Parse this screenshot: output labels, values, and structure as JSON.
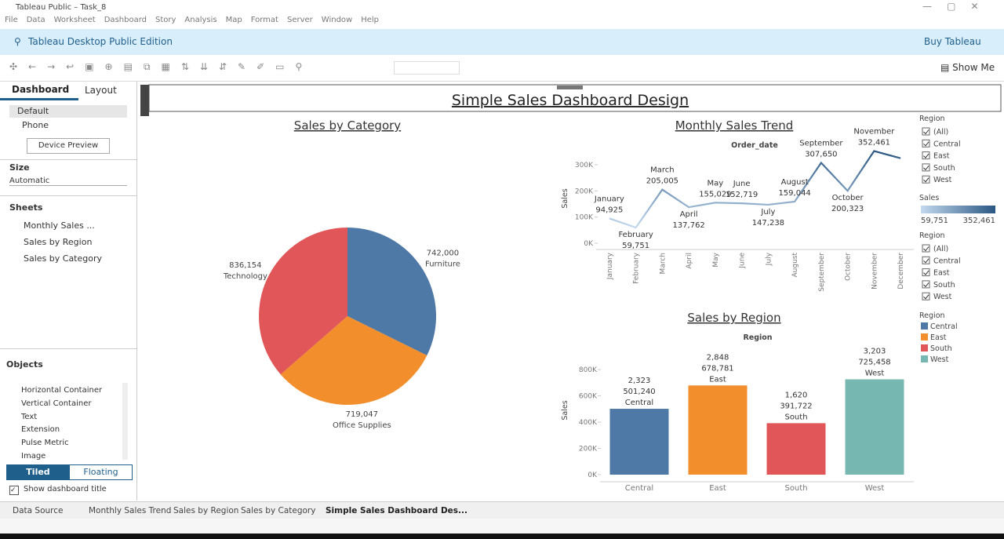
{
  "window": {
    "title": "Tableau Public – Task_8",
    "menu": [
      "File",
      "Data",
      "Worksheet",
      "Dashboard",
      "Story",
      "Analysis",
      "Map",
      "Format",
      "Server",
      "Window",
      "Help"
    ]
  },
  "banner": {
    "edition": "Tableau Desktop Public Edition",
    "buy": "Buy Tableau"
  },
  "toolbar": {
    "show_me": "Show Me"
  },
  "side_panel": {
    "tabs": [
      "Dashboard",
      "Layout"
    ],
    "devices": [
      "Default",
      "Phone"
    ],
    "device_preview": "Device Preview",
    "size_heading": "Size",
    "size_value": "Automatic",
    "sheets_heading": "Sheets",
    "sheets": [
      "Monthly Sales ...",
      "Sales by Region",
      "Sales by Category"
    ],
    "objects_heading": "Objects",
    "objects": [
      "Horizontal Container",
      "Vertical Container",
      "Text",
      "Extension",
      "Pulse Metric",
      "Image"
    ],
    "layout_modes": [
      "Tiled",
      "Floating"
    ],
    "show_title": "Show dashboard title"
  },
  "bottom_tabs": [
    "Data Source",
    "Monthly Sales Trend",
    "Sales by Region",
    "Sales by Category",
    "Simple Sales Dashboard Des..."
  ],
  "dashboard_title": "Simple Sales Dashboard Design",
  "filters": [
    {
      "title": "Region",
      "options": [
        "(All)",
        "Central",
        "East",
        "South",
        "West"
      ]
    },
    {
      "title": "Region",
      "options": [
        "(All)",
        "Central",
        "East",
        "South",
        "West"
      ]
    }
  ],
  "chart_data": [
    {
      "type": "pie",
      "title": "Sales by Category",
      "categories": [
        "Furniture",
        "Office Supplies",
        "Technology"
      ],
      "values": [
        742000,
        719047,
        836154
      ],
      "value_labels": [
        "742,000",
        "719,047",
        "836,154"
      ],
      "colors": [
        "#4e79a7",
        "#f28e2b",
        "#e15759"
      ]
    },
    {
      "type": "line",
      "title": "Monthly Sales Trend",
      "x_header": "Order_date",
      "y_label": "Sales",
      "categories": [
        "January",
        "February",
        "March",
        "April",
        "May",
        "June",
        "July",
        "August",
        "September",
        "October",
        "November",
        "December"
      ],
      "values": [
        94925,
        59751,
        205005,
        137762,
        155029,
        152719,
        147238,
        159044,
        307650,
        200323,
        352461,
        325000
      ],
      "value_labels": [
        "94,925",
        "59,751",
        "205,005",
        "137,762",
        "155,029",
        "152,719",
        "147,238",
        "159,044",
        "307,650",
        "200,323",
        "352,461",
        null
      ],
      "ylim": [
        0,
        360000
      ],
      "yticks": [
        {
          "value": 0,
          "label": "0K"
        },
        {
          "value": 100000,
          "label": "100K"
        },
        {
          "value": 200000,
          "label": "200K"
        },
        {
          "value": 300000,
          "label": "300K"
        }
      ],
      "color_legend": {
        "title": "Sales",
        "colors": [
          "#c3d9ee",
          "#2a5783"
        ],
        "min": {
          "value": 59751,
          "label": "59,751"
        },
        "max": {
          "value": 352461,
          "label": "352,461"
        }
      }
    },
    {
      "type": "bar",
      "title": "Sales by Region",
      "x_header": "Region",
      "y_label": "Sales",
      "legend_title": "Region",
      "categories": [
        "Central",
        "East",
        "South",
        "West"
      ],
      "values": [
        501240,
        678781,
        391722,
        725458
      ],
      "value_labels": [
        "501,240",
        "678,781",
        "391,722",
        "725,458"
      ],
      "counts": [
        2323,
        2848,
        1620,
        3203
      ],
      "count_labels": [
        "2,323",
        "2,848",
        "1,620",
        "3,203"
      ],
      "colors": [
        "#4e79a7",
        "#f28e2b",
        "#e15759",
        "#76b7b2"
      ],
      "ylim": [
        0,
        1000000
      ],
      "yticks": [
        {
          "value": 0,
          "label": "0K"
        },
        {
          "value": 200000,
          "label": "200K"
        },
        {
          "value": 400000,
          "label": "400K"
        },
        {
          "value": 600000,
          "label": "600K"
        },
        {
          "value": 800000,
          "label": "800K"
        }
      ]
    }
  ]
}
